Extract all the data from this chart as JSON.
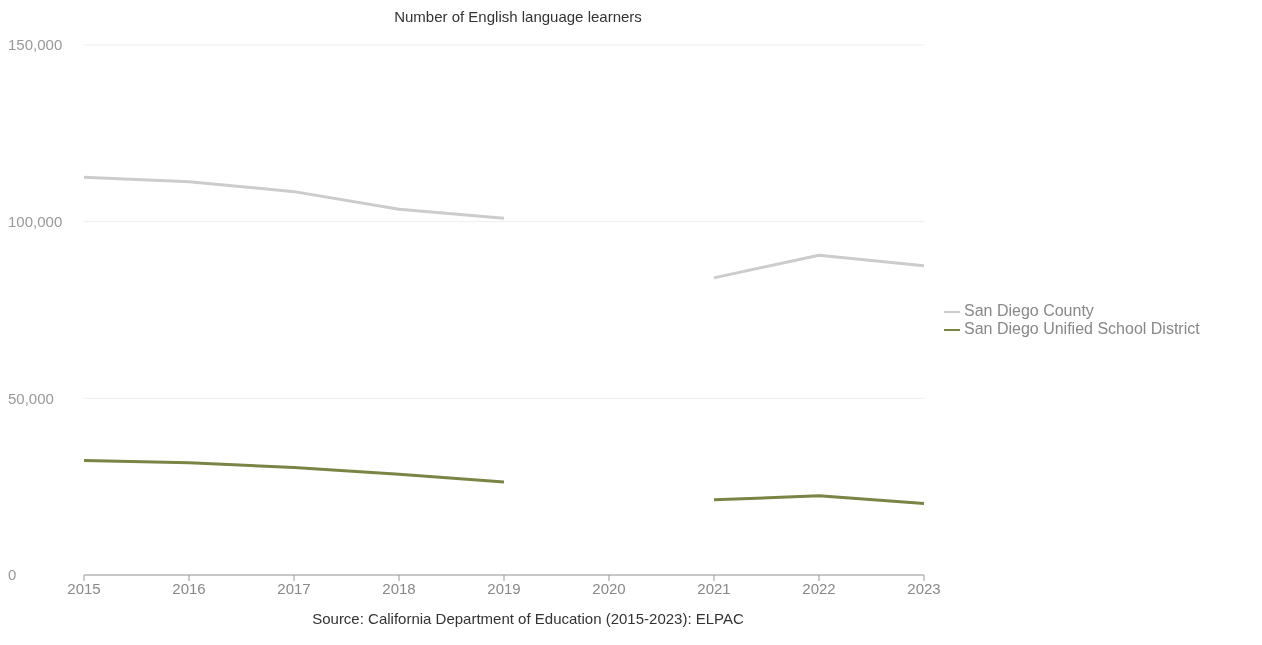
{
  "chart_data": {
    "type": "line",
    "title": "Number of English language learners",
    "x": [
      2015,
      2016,
      2017,
      2018,
      2019,
      2020,
      2021,
      2022,
      2023
    ],
    "series": [
      {
        "name": "San Diego Unified School District",
        "color": "#7a8445",
        "values": [
          32400,
          31800,
          30400,
          28500,
          26300,
          null,
          21300,
          22400,
          20200
        ]
      },
      {
        "name": "San Diego County",
        "color": "#cccccc",
        "values": [
          112600,
          111300,
          108500,
          103500,
          101000,
          null,
          84100,
          90500,
          87500
        ]
      }
    ],
    "xlim": [
      2015,
      2023
    ],
    "xticks": [
      2015,
      2016,
      2017,
      2018,
      2019,
      2020,
      2021,
      2022,
      2023
    ],
    "ylim": [
      0,
      150000
    ],
    "yticks": [
      {
        "value": 0,
        "label": "0"
      },
      {
        "value": 50000,
        "label": "50,000"
      },
      {
        "value": 100000,
        "label": "100,000"
      },
      {
        "value": 150000,
        "label": "150,000"
      }
    ],
    "grid": "y",
    "legend": "right",
    "marker": "none",
    "line_style": "solid",
    "annotations": [
      "Source: California Department of Education (2015-2023): ELPAC"
    ]
  }
}
